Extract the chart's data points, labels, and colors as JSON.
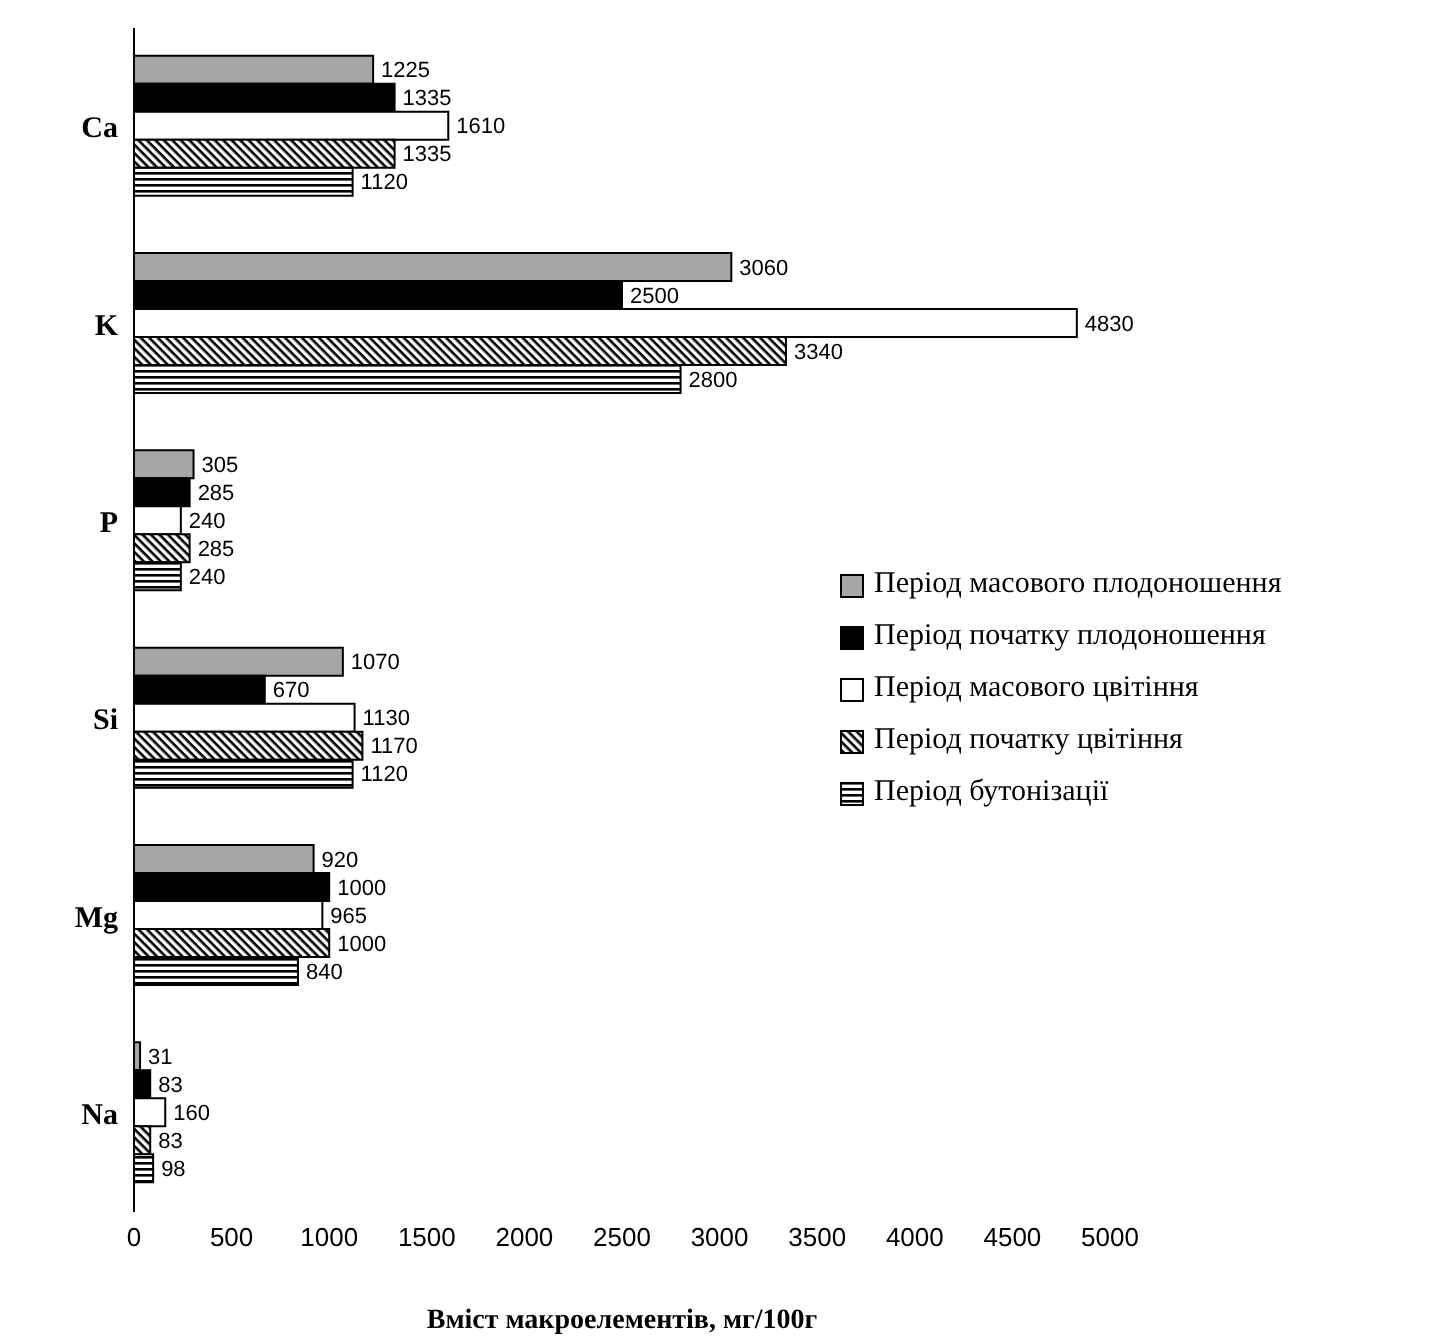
{
  "chart_data": {
    "type": "bar",
    "orientation": "horizontal",
    "xlabel": "Вміст макроелементів, мг/100г",
    "categories": [
      "Ca",
      "K",
      "P",
      "Si",
      "Mg",
      "Na"
    ],
    "series": [
      {
        "name": "Період масового плодоношення",
        "color": "#a6a6a6",
        "values": [
          1225,
          3060,
          305,
          1070,
          920,
          31
        ]
      },
      {
        "name": "Період початку плодоношення",
        "color": "#000000",
        "values": [
          1335,
          2500,
          285,
          670,
          1000,
          83
        ]
      },
      {
        "name": "Період масового цвітіння",
        "color": "#ffffff",
        "values": [
          1610,
          4830,
          240,
          1130,
          965,
          160
        ]
      },
      {
        "name": "Період початку цвітіння",
        "color": "#000000",
        "values": [
          1335,
          3340,
          285,
          1170,
          1000,
          83
        ]
      },
      {
        "name": "Період бутонізації",
        "color": "#000000",
        "values": [
          1120,
          2800,
          240,
          1120,
          840,
          98
        ]
      }
    ],
    "xlim": [
      0,
      5000
    ],
    "xticks": [
      0,
      500,
      1000,
      1500,
      2000,
      2500,
      3000,
      3500,
      4000,
      4500,
      5000
    ],
    "data_labels": true,
    "legend": "right",
    "grid": false
  }
}
